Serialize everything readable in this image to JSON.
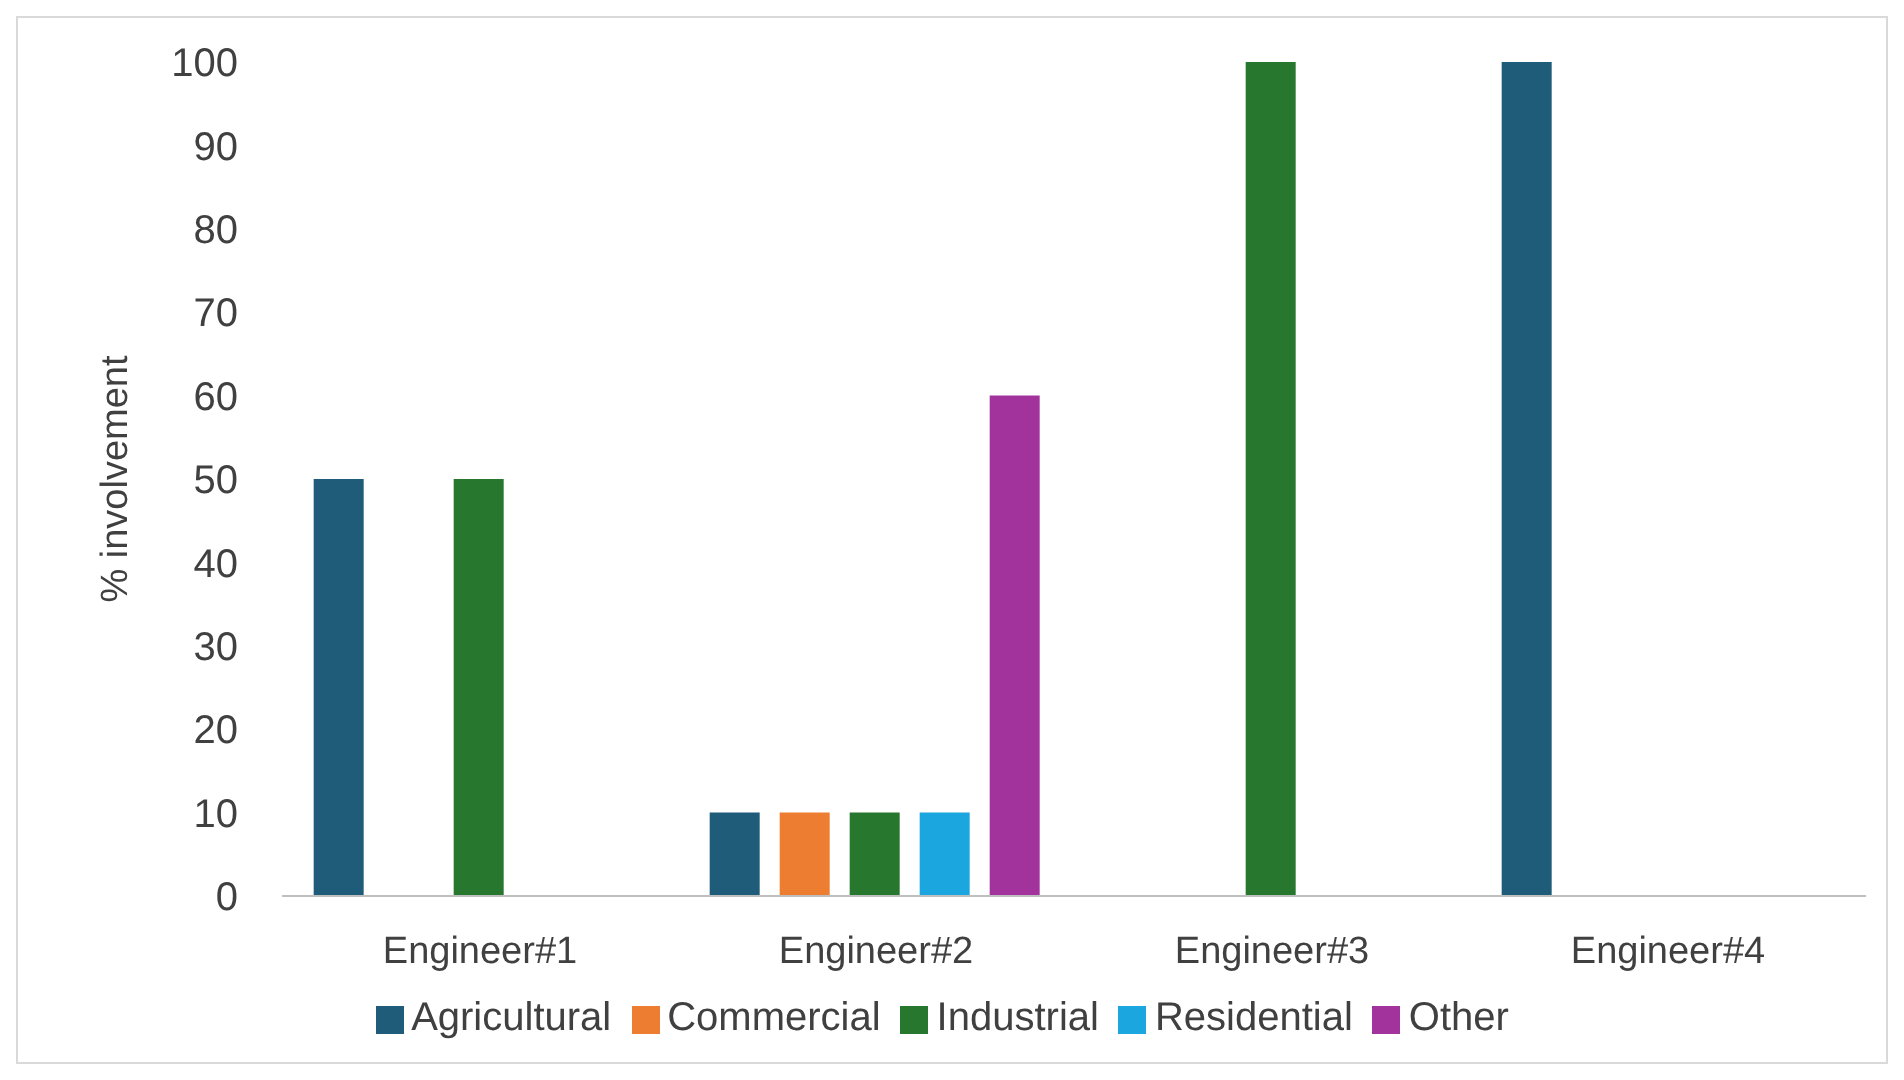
{
  "chart_data": {
    "type": "bar",
    "ylabel": "% involvement",
    "categories": [
      "Engineer#1",
      "Engineer#2",
      "Engineer#3",
      "Engineer#4"
    ],
    "series": [
      {
        "name": "Agricultural",
        "color": "#1f5c7a",
        "values": [
          50,
          10,
          0,
          100
        ]
      },
      {
        "name": "Commercial",
        "color": "#ed7d31",
        "values": [
          0,
          10,
          0,
          0
        ]
      },
      {
        "name": "Industrial",
        "color": "#27772f",
        "values": [
          50,
          10,
          100,
          0
        ]
      },
      {
        "name": "Residential",
        "color": "#1ca6df",
        "values": [
          0,
          10,
          0,
          0
        ]
      },
      {
        "name": "Other",
        "color": "#a2339c",
        "values": [
          0,
          60,
          0,
          0
        ]
      }
    ],
    "ylim": [
      0,
      100
    ],
    "yticks": [
      0,
      10,
      20,
      30,
      40,
      50,
      60,
      70,
      80,
      90,
      100
    ],
    "grid": false,
    "legend": "bottom"
  }
}
